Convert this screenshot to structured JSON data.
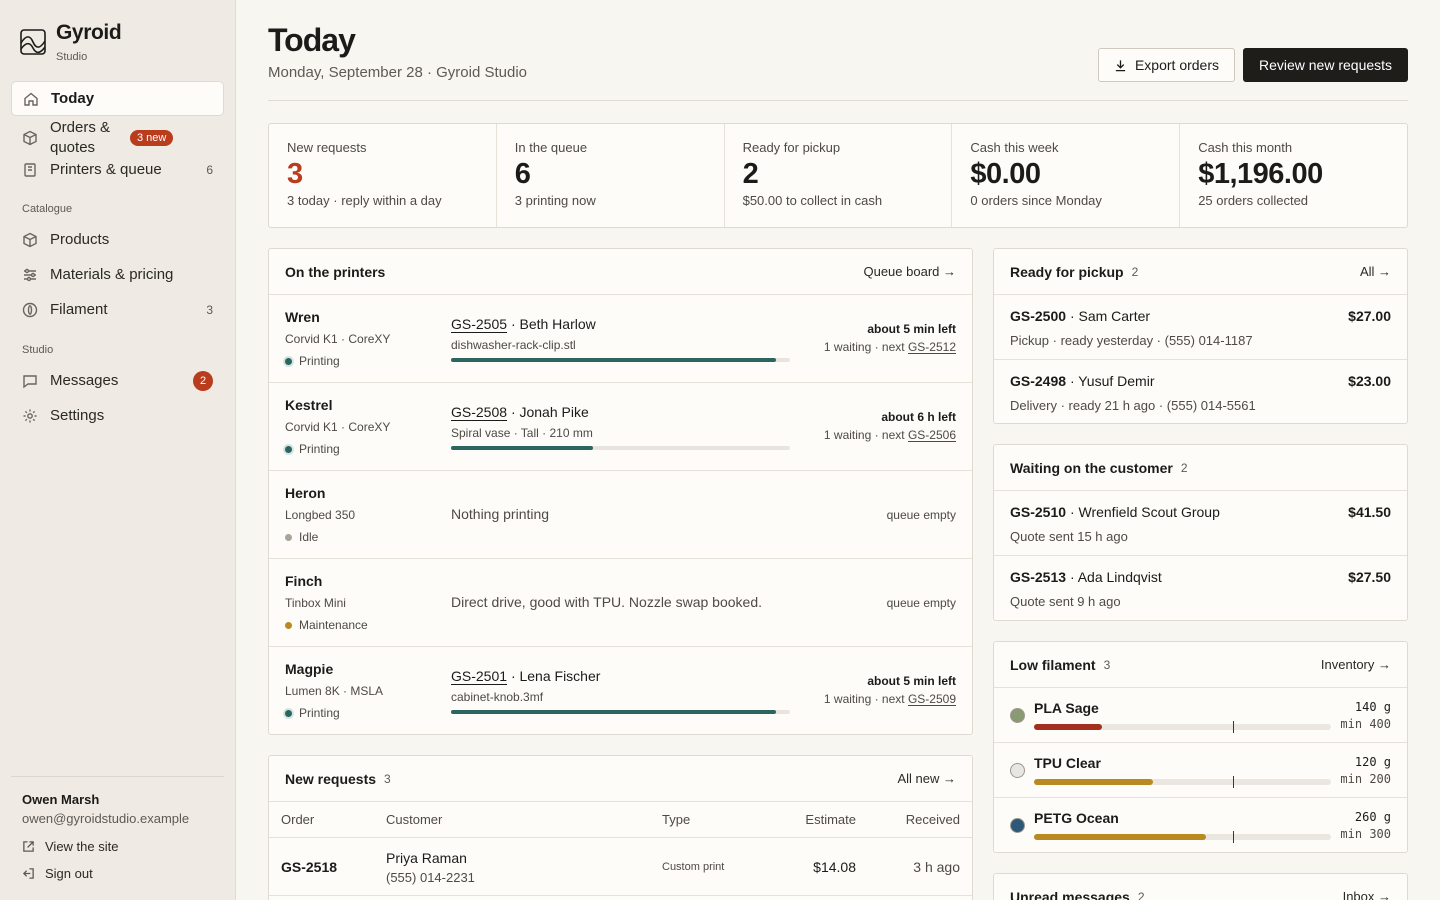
{
  "sidebar": {
    "brand_name": "Gyroid",
    "brand_sub": "Studio",
    "nav": [
      {
        "label": "Today",
        "icon": "home-icon"
      },
      {
        "label": "Orders & quotes",
        "icon": "cube-icon",
        "badge": "3 new"
      },
      {
        "label": "Printers & queue",
        "icon": "printer-icon",
        "count": "6"
      }
    ],
    "section_catalogue": "Catalogue",
    "catalogue": [
      {
        "label": "Products",
        "icon": "box-icon"
      },
      {
        "label": "Materials & pricing",
        "icon": "sliders-icon"
      },
      {
        "label": "Filament",
        "icon": "spool-icon",
        "count": "3"
      }
    ],
    "section_studio": "Studio",
    "studio": [
      {
        "label": "Messages",
        "icon": "message-icon",
        "badge": "2"
      },
      {
        "label": "Settings",
        "icon": "gear-icon"
      }
    ],
    "user_name": "Owen Marsh",
    "user_email": "owen@gyroidstudio.example",
    "view_site": "View the site",
    "sign_out": "Sign out"
  },
  "header": {
    "title": "Today",
    "subtitle": "Monday, September 28 · Gyroid Studio",
    "export_label": "Export orders",
    "review_label": "Review new requests"
  },
  "stats": [
    {
      "label": "New requests",
      "value": "3",
      "note": "3 today · reply within a day"
    },
    {
      "label": "In the queue",
      "value": "6",
      "note": "3 printing now"
    },
    {
      "label": "Ready for pickup",
      "value": "2",
      "note": "$50.00 to collect in cash"
    },
    {
      "label": "Cash this week",
      "value": "$0.00",
      "note": "0 orders since Monday"
    },
    {
      "label": "Cash this month",
      "value": "$1,196.00",
      "note": "25 orders collected"
    }
  ],
  "printers": {
    "title": "On the printers",
    "link": "Queue board →",
    "rows": [
      {
        "name": "Wren",
        "model": "Corvid K1 · CoreXY",
        "status": "Printing",
        "job_id": "GS-2505",
        "customer": "· Beth Harlow",
        "file": "dishwasher-rack-clip.stl",
        "progress": 0.96,
        "eta": "about 5 min left",
        "waiting": "1 waiting · next",
        "next_id": "GS-2512"
      },
      {
        "name": "Kestrel",
        "model": "Corvid K1 · CoreXY",
        "status": "Printing",
        "job_id": "GS-2508",
        "customer": "· Jonah Pike",
        "file": "Spiral vase · Tall · 210 mm",
        "progress": 0.42,
        "eta": "about 6 h left",
        "waiting": "1 waiting · next",
        "next_id": "GS-2506"
      },
      {
        "name": "Heron",
        "model": "Longbed 350",
        "status": "Idle",
        "note": "Nothing printing",
        "queue": "queue empty"
      },
      {
        "name": "Finch",
        "model": "Tinbox Mini",
        "status": "Maintenance",
        "note": "Direct drive, good with TPU. Nozzle swap booked.",
        "queue": "queue empty"
      },
      {
        "name": "Magpie",
        "model": "Lumen 8K · MSLA",
        "status": "Printing",
        "job_id": "GS-2501",
        "customer": "· Lena Fischer",
        "file": "cabinet-knob.3mf",
        "progress": 0.96,
        "eta": "about 5 min left",
        "waiting": "1 waiting · next",
        "next_id": "GS-2509"
      }
    ]
  },
  "requests": {
    "title": "New requests",
    "count": "3",
    "link": "All new →",
    "columns": [
      "Order",
      "Customer",
      "Type",
      "Estimate",
      "Received"
    ],
    "rows": [
      {
        "order": "GS-2518",
        "customer": "Priya Raman",
        "phone": "(555) 014-2231",
        "type": "Custom print",
        "estimate": "$14.08",
        "received": "3 h ago"
      }
    ]
  },
  "pickup": {
    "title": "Ready for pickup",
    "count": "2",
    "link": "All →",
    "rows": [
      {
        "id": "GS-2500",
        "name": "· Sam Carter",
        "sub": "Pickup · ready yesterday · (555) 014-1187",
        "amount": "$27.00"
      },
      {
        "id": "GS-2498",
        "name": "· Yusuf Demir",
        "sub": "Delivery · ready 21 h ago · (555) 014-5561",
        "amount": "$23.00"
      }
    ]
  },
  "waiting": {
    "title": "Waiting on the customer",
    "count": "2",
    "rows": [
      {
        "id": "GS-2510",
        "name": "· Wrenfield Scout Group",
        "sub": "Quote sent 15 h ago",
        "amount": "$41.50"
      },
      {
        "id": "GS-2513",
        "name": "· Ada Lindqvist",
        "sub": "Quote sent 9 h ago",
        "amount": "$27.50"
      }
    ]
  },
  "filament": {
    "title": "Low filament",
    "count": "3",
    "link": "Inventory →",
    "rows": [
      {
        "name": "PLA Sage",
        "swatch": "#8a9a72",
        "bar": "#a3301f",
        "qty": "140 g",
        "min": "min 400",
        "level": 0.23,
        "min_level": 0.67
      },
      {
        "name": "TPU Clear",
        "swatch": "#e6e6e2",
        "bar": "#b88a21",
        "qty": "120 g",
        "min": "min 200",
        "level": 0.4,
        "min_level": 0.67
      },
      {
        "name": "PETG Ocean",
        "swatch": "#2e5878",
        "bar": "#b88a21",
        "qty": "260 g",
        "min": "min 300",
        "level": 0.58,
        "min_level": 0.67
      }
    ]
  },
  "messages": {
    "title": "Unread messages",
    "count": "2",
    "link": "Inbox →"
  }
}
